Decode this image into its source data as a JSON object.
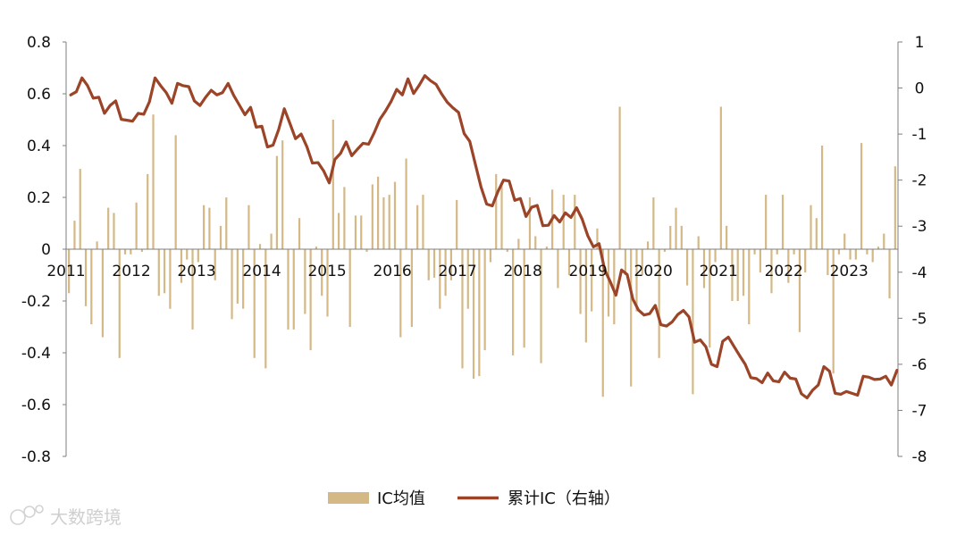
{
  "chart_data": {
    "type": "bar+line",
    "colors": {
      "bar": "#d4b886",
      "line": "#9b4428"
    },
    "y_left": {
      "min": -0.8,
      "max": 0.8,
      "ticks": [
        "0.8",
        "0.6",
        "0.4",
        "0.2",
        "0",
        "-0.2",
        "-0.4",
        "-0.6",
        "-0.8"
      ]
    },
    "y_right": {
      "min": -8,
      "max": 1,
      "ticks": [
        "1",
        "0",
        "-1",
        "-2",
        "-3",
        "-4",
        "-5",
        "-6",
        "-7",
        "-8"
      ]
    },
    "x_range": [
      2011.0,
      2023.75
    ],
    "year_labels": [
      "2011",
      "2012",
      "2013",
      "2014",
      "2015",
      "2016",
      "2017",
      "2018",
      "2019",
      "2020",
      "2021",
      "2022",
      "2023"
    ],
    "series": [
      {
        "name": "IC均值",
        "type": "bar",
        "axis": "left",
        "values": [
          -0.17,
          0.11,
          0.31,
          -0.22,
          -0.29,
          0.03,
          -0.34,
          0.16,
          0.14,
          -0.42,
          -0.02,
          -0.02,
          0.18,
          -0.01,
          0.29,
          0.52,
          -0.18,
          -0.17,
          -0.23,
          0.44,
          -0.13,
          -0.04,
          -0.31,
          -0.05,
          0.17,
          0.16,
          -0.12,
          0.09,
          0.2,
          -0.27,
          -0.21,
          -0.23,
          0.17,
          -0.42,
          0.02,
          -0.46,
          0.06,
          0.36,
          0.42,
          -0.31,
          -0.31,
          0.12,
          -0.25,
          -0.39,
          0.01,
          -0.18,
          -0.26,
          0.5,
          0.14,
          0.24,
          -0.3,
          0.13,
          0.13,
          -0.01,
          0.25,
          0.28,
          0.2,
          0.21,
          0.26,
          -0.34,
          0.35,
          -0.3,
          0.17,
          0.21,
          -0.12,
          -0.11,
          -0.23,
          -0.18,
          -0.12,
          0.19,
          -0.46,
          -0.23,
          -0.5,
          -0.49,
          -0.39,
          -0.05,
          0.29,
          0.26,
          -0.01,
          -0.41,
          0.04,
          -0.38,
          0.2,
          0.05,
          -0.44,
          0.01,
          0.23,
          -0.15,
          0.21,
          -0.1,
          0.21,
          -0.25,
          -0.36,
          -0.24,
          0.08,
          -0.57,
          -0.26,
          -0.29,
          0.55,
          -0.1,
          -0.53,
          -0.24,
          -0.1,
          0.03,
          0.2,
          -0.42,
          -0.01,
          0.09,
          0.16,
          0.09,
          -0.14,
          -0.56,
          0.05,
          -0.15,
          -0.38,
          -0.05,
          0.55,
          0.09,
          -0.2,
          -0.2,
          -0.18,
          -0.29,
          -0.02,
          -0.09,
          0.21,
          -0.17,
          -0.02,
          0.21,
          -0.13,
          -0.02,
          -0.32,
          -0.09,
          0.17,
          0.12,
          0.4,
          -0.1,
          -0.48,
          -0.02,
          0.06,
          -0.04,
          -0.04,
          0.41,
          -0.02,
          -0.05,
          0.01,
          0.06,
          -0.19,
          0.32
        ]
      },
      {
        "name": "累计IC（右轴）",
        "type": "line",
        "axis": "right",
        "values": [
          -0.15,
          -0.08,
          0.22,
          0.05,
          -0.22,
          -0.2,
          -0.55,
          -0.38,
          -0.28,
          -0.68,
          -0.7,
          -0.72,
          -0.55,
          -0.57,
          -0.3,
          0.22,
          0.05,
          -0.1,
          -0.33,
          0.1,
          0.05,
          0.03,
          -0.28,
          -0.38,
          -0.2,
          -0.05,
          -0.15,
          -0.1,
          0.1,
          -0.16,
          -0.37,
          -0.58,
          -0.42,
          -0.85,
          -0.83,
          -1.28,
          -1.24,
          -0.9,
          -0.45,
          -0.77,
          -1.1,
          -1.0,
          -1.27,
          -1.63,
          -1.62,
          -1.8,
          -2.06,
          -1.55,
          -1.42,
          -1.17,
          -1.47,
          -1.33,
          -1.2,
          -1.22,
          -0.97,
          -0.68,
          -0.5,
          -0.29,
          -0.03,
          -0.15,
          0.2,
          -0.12,
          0.06,
          0.27,
          0.16,
          0.08,
          -0.13,
          -0.31,
          -0.43,
          -0.53,
          -0.99,
          -1.16,
          -1.66,
          -2.15,
          -2.52,
          -2.56,
          -2.25,
          -2.0,
          -2.02,
          -2.44,
          -2.4,
          -2.79,
          -2.59,
          -2.55,
          -2.99,
          -2.98,
          -2.77,
          -2.91,
          -2.71,
          -2.81,
          -2.6,
          -2.85,
          -3.21,
          -3.45,
          -3.38,
          -3.95,
          -4.21,
          -4.5,
          -3.95,
          -4.05,
          -4.58,
          -4.82,
          -4.93,
          -4.9,
          -4.72,
          -5.14,
          -5.17,
          -5.08,
          -4.92,
          -4.83,
          -4.97,
          -5.52,
          -5.47,
          -5.62,
          -6.0,
          -6.05,
          -5.5,
          -5.41,
          -5.61,
          -5.81,
          -6.0,
          -6.29,
          -6.31,
          -6.4,
          -6.19,
          -6.36,
          -6.38,
          -6.17,
          -6.3,
          -6.32,
          -6.64,
          -6.73,
          -6.56,
          -6.45,
          -6.05,
          -6.15,
          -6.63,
          -6.65,
          -6.59,
          -6.63,
          -6.67,
          -6.26,
          -6.28,
          -6.33,
          -6.32,
          -6.26,
          -6.45,
          -6.13
        ]
      }
    ]
  },
  "legend": {
    "bar_label": "IC均值",
    "line_label": "累计IC（右轴）"
  },
  "watermark": "大数跨境"
}
